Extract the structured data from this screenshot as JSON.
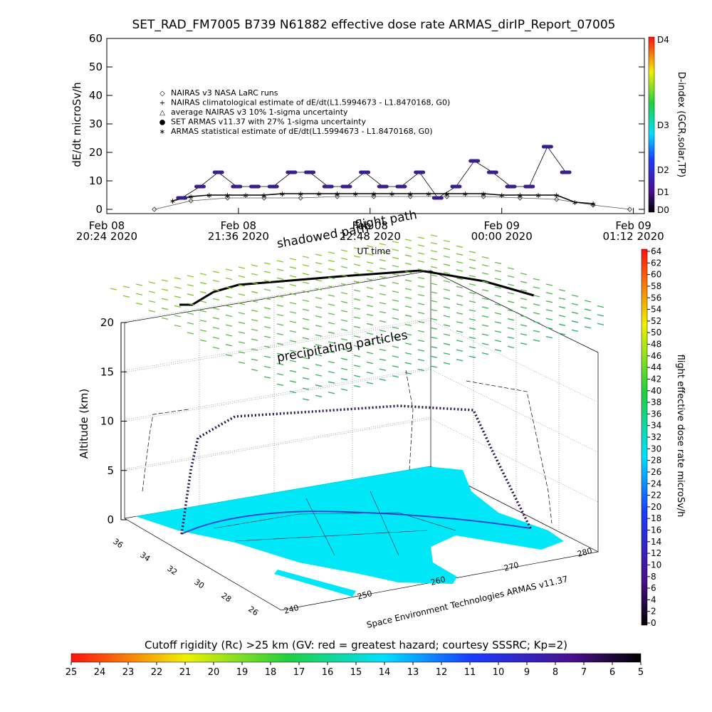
{
  "chart_data": [
    {
      "type": "line",
      "title": "SET_RAD_FM7005   B739 N61882 effective dose rate ARMAS_dirIP_Report_07005",
      "y_label": "dE/dt microSv/h",
      "ylim": [
        -1.5,
        60
      ],
      "yticks": [
        0,
        10,
        20,
        30,
        40,
        50,
        60
      ],
      "xlim": [
        "2020-02-08T20:24Z",
        "2020-02-09T01:18Z"
      ],
      "xticks": [
        {
          "value": "2020-02-08T20:24Z",
          "label": [
            "Feb 08",
            "20:24 2020"
          ]
        },
        {
          "value": "2020-02-08T21:36Z",
          "label": [
            "Feb 08",
            "21:36 2020"
          ]
        },
        {
          "value": "2020-02-08T22:48Z",
          "label": [
            "Feb 08",
            "22:48 2020"
          ]
        },
        {
          "value": "2020-02-09T00:00Z",
          "label": [
            "Feb 09",
            "00:00 2020"
          ]
        },
        {
          "value": "2020-02-09T01:12Z",
          "label": [
            "Feb 09",
            "01:12 2020"
          ]
        }
      ],
      "legend": [
        "NAIRAS v3 NASA LaRC runs",
        "NAIRAS climatological estimate of dE/dt(L1.5994673 - L1.8470168, G0)",
        "average NAIRAS v3 10% 1-sigma uncertainty",
        "SET ARMAS v11.37 with 27% 1-sigma uncertainty",
        "ARMAS statistical estimate of dE/dt(L1.5994673 - L1.8470168, G0)"
      ],
      "series": [
        {
          "name": "NAIRAS v3 NASA LaRC runs",
          "color": "#555555",
          "marker": "diamond",
          "x": [
            "2020-02-08T20:50Z",
            "2020-02-08T21:10Z",
            "2020-02-08T21:30Z",
            "2020-02-08T21:50Z",
            "2020-02-08T22:10Z",
            "2020-02-08T22:30Z",
            "2020-02-08T22:50Z",
            "2020-02-08T23:10Z",
            "2020-02-08T23:30Z",
            "2020-02-08T23:50Z",
            "2020-02-09T00:10Z",
            "2020-02-09T00:30Z",
            "2020-02-09T00:50Z",
            "2020-02-09T01:10Z"
          ],
          "values": [
            0,
            3,
            4,
            4,
            4,
            4.5,
            4.5,
            4.5,
            4.5,
            4.5,
            4,
            3.5,
            1.5,
            0
          ]
        },
        {
          "name": "ARMAS statistical estimate of dE/dt(L1.5994673 - L1.8470168, G0)",
          "color": "#000000",
          "marker": "star",
          "x": [
            "2020-02-08T21:00Z",
            "2020-02-08T21:10Z",
            "2020-02-08T21:20Z",
            "2020-02-08T21:30Z",
            "2020-02-08T21:40Z",
            "2020-02-08T21:50Z",
            "2020-02-08T22:00Z",
            "2020-02-08T22:10Z",
            "2020-02-08T22:20Z",
            "2020-02-08T22:30Z",
            "2020-02-08T22:40Z",
            "2020-02-08T22:50Z",
            "2020-02-08T23:00Z",
            "2020-02-08T23:10Z",
            "2020-02-08T23:20Z",
            "2020-02-08T23:30Z",
            "2020-02-08T23:40Z",
            "2020-02-08T23:50Z",
            "2020-02-09T00:00Z",
            "2020-02-09T00:10Z",
            "2020-02-09T00:20Z",
            "2020-02-09T00:30Z",
            "2020-02-09T00:40Z",
            "2020-02-09T00:50Z"
          ],
          "values": [
            3,
            4.5,
            5,
            5,
            5,
            5,
            5.5,
            5.5,
            5.5,
            5.5,
            5.5,
            5.5,
            5.5,
            5.5,
            5.5,
            5.5,
            5.5,
            5.5,
            5,
            5,
            5,
            5,
            2.5,
            2
          ]
        },
        {
          "name": "SET ARMAS v11.37 with 27% 1-sigma uncertainty",
          "color": "#3b1e8a",
          "marker": "circle",
          "x": [
            "2020-02-08T21:05Z",
            "2020-02-08T21:15Z",
            "2020-02-08T21:25Z",
            "2020-02-08T21:35Z",
            "2020-02-08T21:45Z",
            "2020-02-08T21:55Z",
            "2020-02-08T22:05Z",
            "2020-02-08T22:15Z",
            "2020-02-08T22:25Z",
            "2020-02-08T22:35Z",
            "2020-02-08T22:45Z",
            "2020-02-08T22:55Z",
            "2020-02-08T23:05Z",
            "2020-02-08T23:15Z",
            "2020-02-08T23:25Z",
            "2020-02-08T23:35Z",
            "2020-02-08T23:45Z",
            "2020-02-08T23:55Z",
            "2020-02-09T00:05Z",
            "2020-02-09T00:15Z",
            "2020-02-09T00:25Z",
            "2020-02-09T00:35Z"
          ],
          "values": [
            4,
            8,
            13,
            8,
            8,
            8,
            13,
            13,
            8,
            8,
            13,
            8,
            8,
            13,
            4,
            8,
            17,
            13,
            8,
            8,
            22,
            13
          ]
        }
      ],
      "d_index": {
        "label": "D-index (GCR,solar,TP)",
        "ticks": [
          "D0",
          "D1",
          "D2",
          "D3",
          "D4"
        ]
      }
    }
  ],
  "panel3d": {
    "labels": {
      "shadowed": "shadowed path",
      "flight": "flight path",
      "ut": "UT time",
      "precip": "precipitating particles",
      "credit": "Space Environment Technologies ARMAS v11.37"
    },
    "z_label": "Altitude (km)",
    "zlim": [
      0,
      20
    ],
    "zticks": [
      0,
      5,
      10,
      15,
      20
    ],
    "lat_ticks": [
      "36",
      "34",
      "32",
      "30",
      "28",
      "26"
    ],
    "lon_ticks": [
      "240",
      "250",
      "260",
      "270",
      "280"
    ]
  },
  "dose_colorbar": {
    "label": "flight effective dose rate microSv/h",
    "lim": [
      0,
      64
    ],
    "ticks": [
      0,
      2,
      4,
      6,
      8,
      10,
      12,
      14,
      16,
      18,
      20,
      22,
      24,
      26,
      28,
      30,
      32,
      34,
      36,
      38,
      40,
      42,
      44,
      46,
      48,
      50,
      52,
      54,
      56,
      58,
      60,
      62,
      64
    ]
  },
  "cutoff_colorbar": {
    "title": "Cutoff rigidity (Rc) >25 km (GV: red = greatest hazard; courtesy SSSRC; Kp=2)",
    "lim": [
      25,
      5
    ],
    "ticks": [
      25,
      24,
      23,
      22,
      21,
      20,
      19,
      18,
      17,
      16,
      15,
      14,
      13,
      12,
      11,
      10,
      9,
      8,
      7,
      6,
      5
    ]
  }
}
